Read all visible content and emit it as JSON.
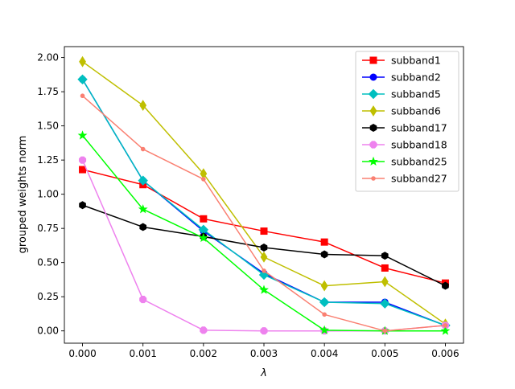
{
  "chart_data": {
    "type": "line",
    "title": "",
    "xlabel": "λ",
    "ylabel": "grouped weights norm",
    "x": [
      0.0,
      0.001,
      0.002,
      0.003,
      0.004,
      0.005,
      0.006
    ],
    "xticks": [
      "0.000",
      "0.001",
      "0.002",
      "0.003",
      "0.004",
      "0.005",
      "0.006"
    ],
    "yticks": [
      "0.00",
      "0.25",
      "0.50",
      "0.75",
      "1.00",
      "1.25",
      "1.50",
      "1.75",
      "2.00"
    ],
    "xlim": [
      -0.0003,
      0.0063
    ],
    "ylim": [
      -0.09,
      2.08
    ],
    "grid": false,
    "legend_position": "top-right",
    "series": [
      {
        "name": "subband1",
        "color": "#ff0000",
        "marker": "square",
        "values": [
          1.18,
          1.07,
          0.82,
          0.73,
          0.65,
          0.46,
          0.35
        ]
      },
      {
        "name": "subband2",
        "color": "#0000ff",
        "marker": "circle",
        "values": [
          1.84,
          1.1,
          0.73,
          0.42,
          0.21,
          0.21,
          0.04
        ]
      },
      {
        "name": "subband5",
        "color": "#00bfbf",
        "marker": "diamond",
        "values": [
          1.84,
          1.1,
          0.74,
          0.41,
          0.21,
          0.2,
          0.04
        ]
      },
      {
        "name": "subband6",
        "color": "#bfbf00",
        "marker": "thin-diamond",
        "values": [
          1.97,
          1.65,
          1.15,
          0.54,
          0.33,
          0.36,
          0.05
        ]
      },
      {
        "name": "subband17",
        "color": "#000000",
        "marker": "hexagon",
        "values": [
          0.92,
          0.76,
          0.69,
          0.61,
          0.56,
          0.55,
          0.33
        ]
      },
      {
        "name": "subband18",
        "color": "#ee82ee",
        "marker": "octagon",
        "values": [
          1.25,
          0.23,
          0.005,
          0.0,
          0.0,
          0.0,
          0.04
        ]
      },
      {
        "name": "subband25",
        "color": "#00ff00",
        "marker": "star",
        "values": [
          1.43,
          0.89,
          0.68,
          0.3,
          0.005,
          0.0,
          0.0
        ]
      },
      {
        "name": "subband27",
        "color": "#fa8072",
        "marker": "point",
        "values": [
          1.72,
          1.33,
          1.11,
          0.44,
          0.12,
          0.0,
          0.04
        ]
      }
    ]
  }
}
